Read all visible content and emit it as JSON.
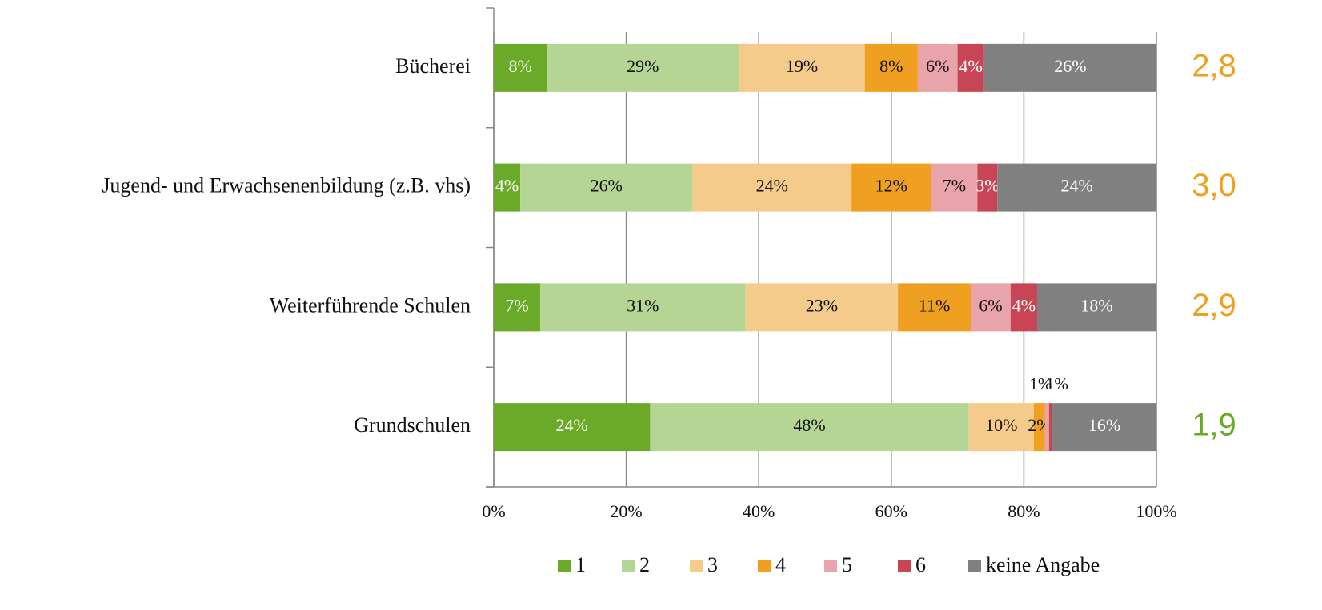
{
  "chart_data": {
    "type": "stacked-bar-horizontal",
    "categories": [
      "Bücherei",
      "Jugend- und Erwachsenenbildung (z.B. vhs)",
      "Weiterführende Schulen",
      "Grundschulen"
    ],
    "series": [
      {
        "name": "1",
        "color": "#6aaa28",
        "values": [
          8,
          4,
          7,
          23.6
        ],
        "value_labels": [
          "8%",
          "4%",
          "7%",
          "24%"
        ]
      },
      {
        "name": "2",
        "color": "#b5d595",
        "values": [
          29,
          26,
          31,
          48.1
        ],
        "value_labels": [
          "29%",
          "26%",
          "31%",
          "48%"
        ]
      },
      {
        "name": "3",
        "color": "#f5cb8b",
        "values": [
          19,
          24,
          23,
          9.8
        ],
        "value_labels": [
          "19%",
          "24%",
          "23%",
          "10%"
        ]
      },
      {
        "name": "4",
        "color": "#f0a020",
        "values": [
          8,
          12,
          11,
          1.7
        ],
        "value_labels": [
          "8%",
          "12%",
          "11%",
          "2%"
        ]
      },
      {
        "name": "5",
        "color": "#e8a4aa",
        "values": [
          6,
          7,
          6,
          0.6
        ],
        "value_labels": [
          "6%",
          "7%",
          "6%",
          "1%"
        ]
      },
      {
        "name": "6",
        "color": "#c84555",
        "values": [
          4,
          3,
          4,
          0.5
        ],
        "value_labels": [
          "4%",
          "3%",
          "4%",
          "1%"
        ]
      },
      {
        "name": "keine Angabe",
        "color": "#808080",
        "values": [
          26,
          24,
          18,
          15.7
        ],
        "value_labels": [
          "26%",
          "24%",
          "18%",
          "16%"
        ]
      }
    ],
    "xlim": [
      0,
      100
    ],
    "xticks": [
      {
        "value": 0,
        "label": "0%"
      },
      {
        "value": 20,
        "label": "20%"
      },
      {
        "value": 40,
        "label": "40%"
      },
      {
        "value": 60,
        "label": "60%"
      },
      {
        "value": 80,
        "label": "80%"
      },
      {
        "value": 100,
        "label": "100%"
      }
    ],
    "grid": true,
    "legend": "bottom",
    "averages": {
      "values": [
        2.8,
        3.0,
        2.9,
        1.9
      ],
      "value_labels": [
        "2,8",
        "3,0",
        "2,9",
        "1,9"
      ],
      "colors": [
        "#f0a020",
        "#f0a020",
        "#f0a020",
        "#6aaa28"
      ]
    }
  }
}
